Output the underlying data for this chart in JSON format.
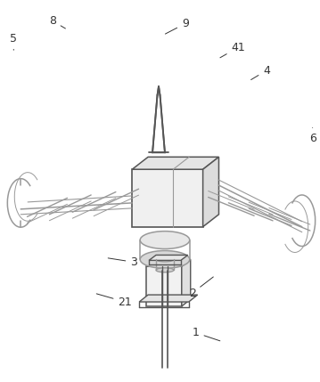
{
  "bg_color": "#ffffff",
  "lc": "#999999",
  "dc": "#555555",
  "figsize": [
    3.59,
    4.29
  ],
  "dpi": 100,
  "label_color": "#333333",
  "label_fs": 9
}
